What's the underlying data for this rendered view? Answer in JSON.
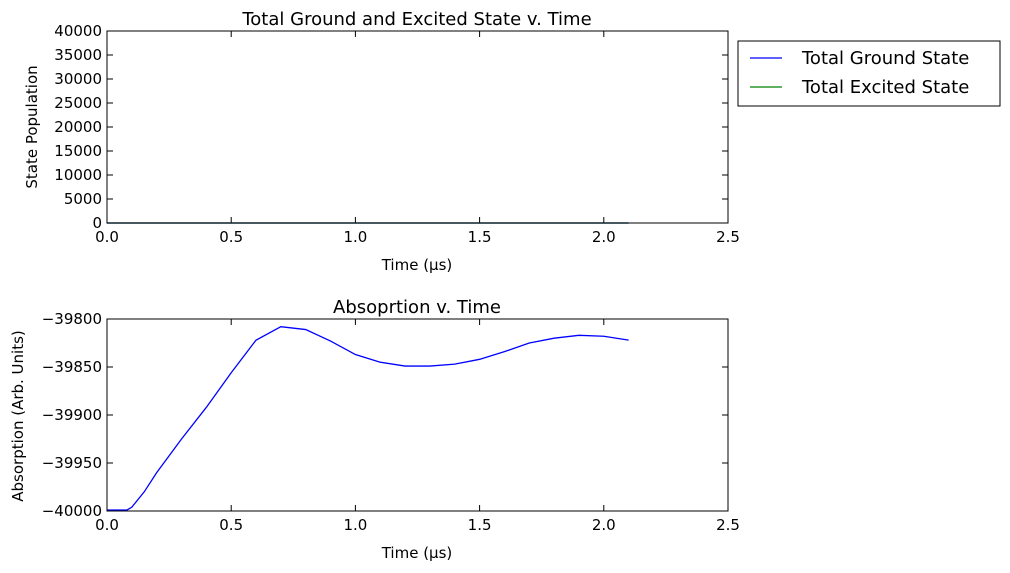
{
  "chart_data": [
    {
      "type": "line",
      "title": "Total Ground and Excited State v. Time",
      "xlabel": "Time (μs)",
      "ylabel": "State Population",
      "xlim": [
        0,
        2.5
      ],
      "ylim": [
        0,
        40000
      ],
      "x_ticks": [
        "0.0",
        "0.5",
        "1.0",
        "1.5",
        "2.0",
        "2.5"
      ],
      "y_ticks": [
        "0",
        "5000",
        "10000",
        "15000",
        "20000",
        "25000",
        "30000",
        "35000",
        "40000"
      ],
      "legend_position": "outside-right",
      "series": [
        {
          "name": "Total Ground State",
          "color": "#0000ff",
          "x": [
            0,
            0.5,
            1.0,
            1.5,
            2.0,
            2.1
          ],
          "y": [
            0,
            0,
            0,
            0,
            0,
            0
          ]
        },
        {
          "name": "Total Excited State",
          "color": "#008000",
          "x": [
            0,
            0.5,
            1.0,
            1.5,
            2.0,
            2.1
          ],
          "y": [
            0,
            0,
            0,
            0,
            0,
            0
          ]
        }
      ]
    },
    {
      "type": "line",
      "title": "Absoprtion v. Time",
      "xlabel": "Time (μs)",
      "ylabel": "Absorption (Arb. Units)",
      "xlim": [
        0,
        2.5
      ],
      "ylim": [
        -40000,
        -39800
      ],
      "x_ticks": [
        "0.0",
        "0.5",
        "1.0",
        "1.5",
        "2.0",
        "2.5"
      ],
      "y_ticks": [
        "−40000",
        "−39950",
        "−39900",
        "−39850",
        "−39800"
      ],
      "series": [
        {
          "color": "#0000ff",
          "x": [
            0,
            0.05,
            0.08,
            0.1,
            0.15,
            0.2,
            0.3,
            0.4,
            0.5,
            0.6,
            0.7,
            0.8,
            0.9,
            1.0,
            1.1,
            1.2,
            1.3,
            1.4,
            1.5,
            1.6,
            1.7,
            1.8,
            1.9,
            2.0,
            2.1
          ],
          "y": [
            -39999,
            -39999,
            -39999,
            -39996,
            -39980,
            -39960,
            -39925,
            -39892,
            -39856,
            -39822,
            -39808,
            -39811,
            -39823,
            -39837,
            -39845,
            -39849,
            -39849,
            -39847,
            -39842,
            -39834,
            -39825,
            -39820,
            -39817,
            -39818,
            -39822
          ]
        }
      ]
    }
  ]
}
